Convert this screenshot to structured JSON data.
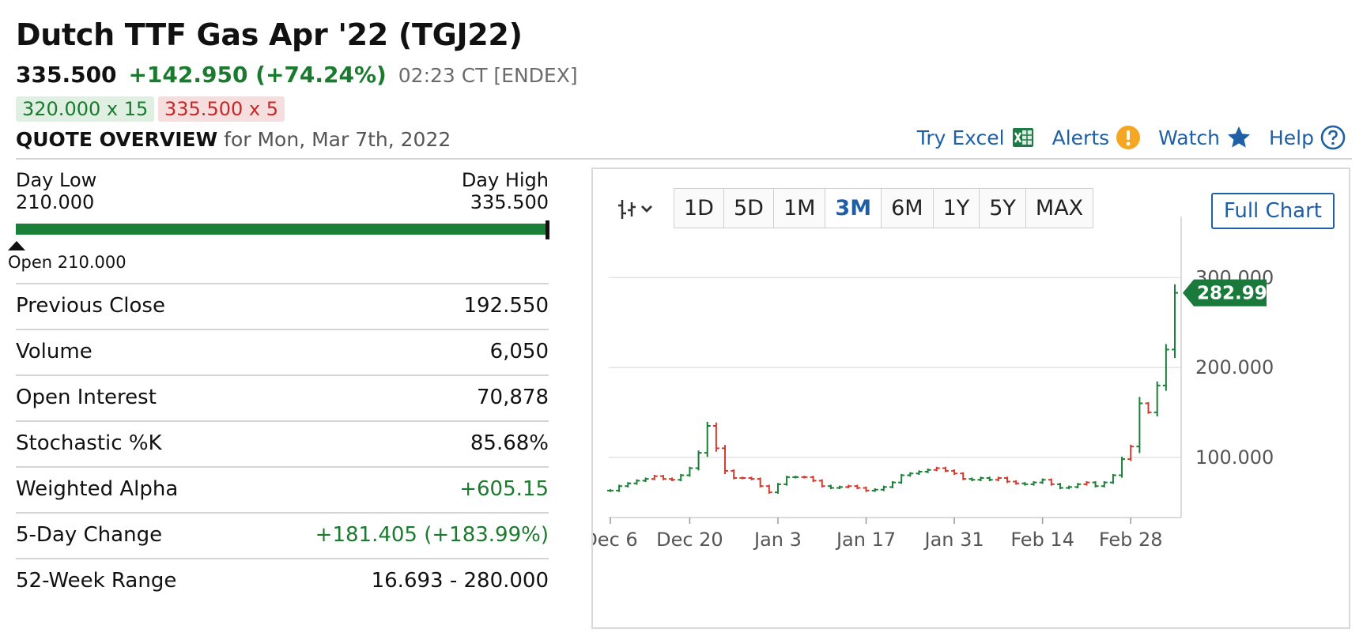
{
  "header": {
    "title": "Dutch TTF Gas Apr '22 (TGJ22)",
    "last": "335.500",
    "change": "+142.950 (+74.24%)",
    "time": "02:23 CT [ENDEX]",
    "bid": "320.000 x 15",
    "ask": "335.500 x 5",
    "section_title": "QUOTE OVERVIEW",
    "section_date": "for Mon, Mar 7th, 2022"
  },
  "toolbar": {
    "excel": "Try Excel",
    "alerts": "Alerts",
    "watch": "Watch",
    "help": "Help"
  },
  "day_range": {
    "low_label": "Day Low",
    "low_value": "210.000",
    "high_label": "Day High",
    "high_value": "335.500",
    "open_label": "Open 210.000"
  },
  "stats": [
    {
      "label": "Previous Close",
      "value": "192.550",
      "positive": false
    },
    {
      "label": "Volume",
      "value": "6,050",
      "positive": false
    },
    {
      "label": "Open Interest",
      "value": "70,878",
      "positive": false
    },
    {
      "label": "Stochastic %K",
      "value": "85.68%",
      "positive": false
    },
    {
      "label": "Weighted Alpha",
      "value": "+605.15",
      "positive": true
    },
    {
      "label": "5-Day Change",
      "value": "+181.405 (+183.99%)",
      "positive": true
    },
    {
      "label": "52-Week Range",
      "value": "16.693 - 280.000",
      "positive": false
    }
  ],
  "chart_controls": {
    "type_icon": "ohlc-bar-icon",
    "periods": [
      "1D",
      "5D",
      "1M",
      "3M",
      "6M",
      "1Y",
      "5Y",
      "MAX"
    ],
    "active_period": "3M",
    "full_chart": "Full Chart"
  },
  "colors": {
    "up": "#1a7f37",
    "down": "#d23b2e",
    "accent": "#1f5fa6",
    "last_badge": "#1a7a3c"
  },
  "chart_data": {
    "type": "line",
    "title": "",
    "xlabel": "",
    "ylabel": "",
    "ylim": [
      33,
      368
    ],
    "yticks": [
      "100.000",
      "200.000",
      "300.000"
    ],
    "yticks_values": [
      100,
      200,
      300
    ],
    "xticks": [
      "Dec 6",
      "Dec 20",
      "Jan 3",
      "Jan 17",
      "Jan 31",
      "Feb 14",
      "Feb 28"
    ],
    "xticks_index": [
      0,
      9,
      19,
      29,
      39,
      49,
      59
    ],
    "last_value": "282.995",
    "grid": true,
    "series": [
      {
        "values": [
          63,
          68,
          71,
          74,
          76,
          79,
          76,
          75,
          80,
          88,
          105,
          135,
          110,
          85,
          77,
          77,
          76,
          68,
          61,
          70,
          78,
          78,
          78,
          74,
          68,
          66,
          67,
          68,
          66,
          63,
          64,
          67,
          72,
          80,
          82,
          84,
          86,
          88,
          85,
          82,
          76,
          75,
          77,
          75,
          77,
          73,
          71,
          70,
          72,
          75,
          70,
          66,
          67,
          70,
          72,
          68,
          72,
          80,
          98,
          112,
          160,
          150,
          180,
          220,
          283
        ],
        "up": [
          true,
          true,
          true,
          true,
          true,
          false,
          false,
          false,
          true,
          true,
          true,
          true,
          false,
          false,
          false,
          false,
          false,
          false,
          false,
          true,
          true,
          true,
          false,
          false,
          false,
          true,
          true,
          false,
          false,
          false,
          true,
          true,
          true,
          true,
          true,
          true,
          true,
          false,
          false,
          false,
          false,
          true,
          true,
          true,
          false,
          false,
          false,
          true,
          true,
          true,
          false,
          true,
          true,
          true,
          false,
          true,
          true,
          true,
          true,
          false,
          true,
          false,
          true,
          true,
          true
        ]
      }
    ]
  }
}
